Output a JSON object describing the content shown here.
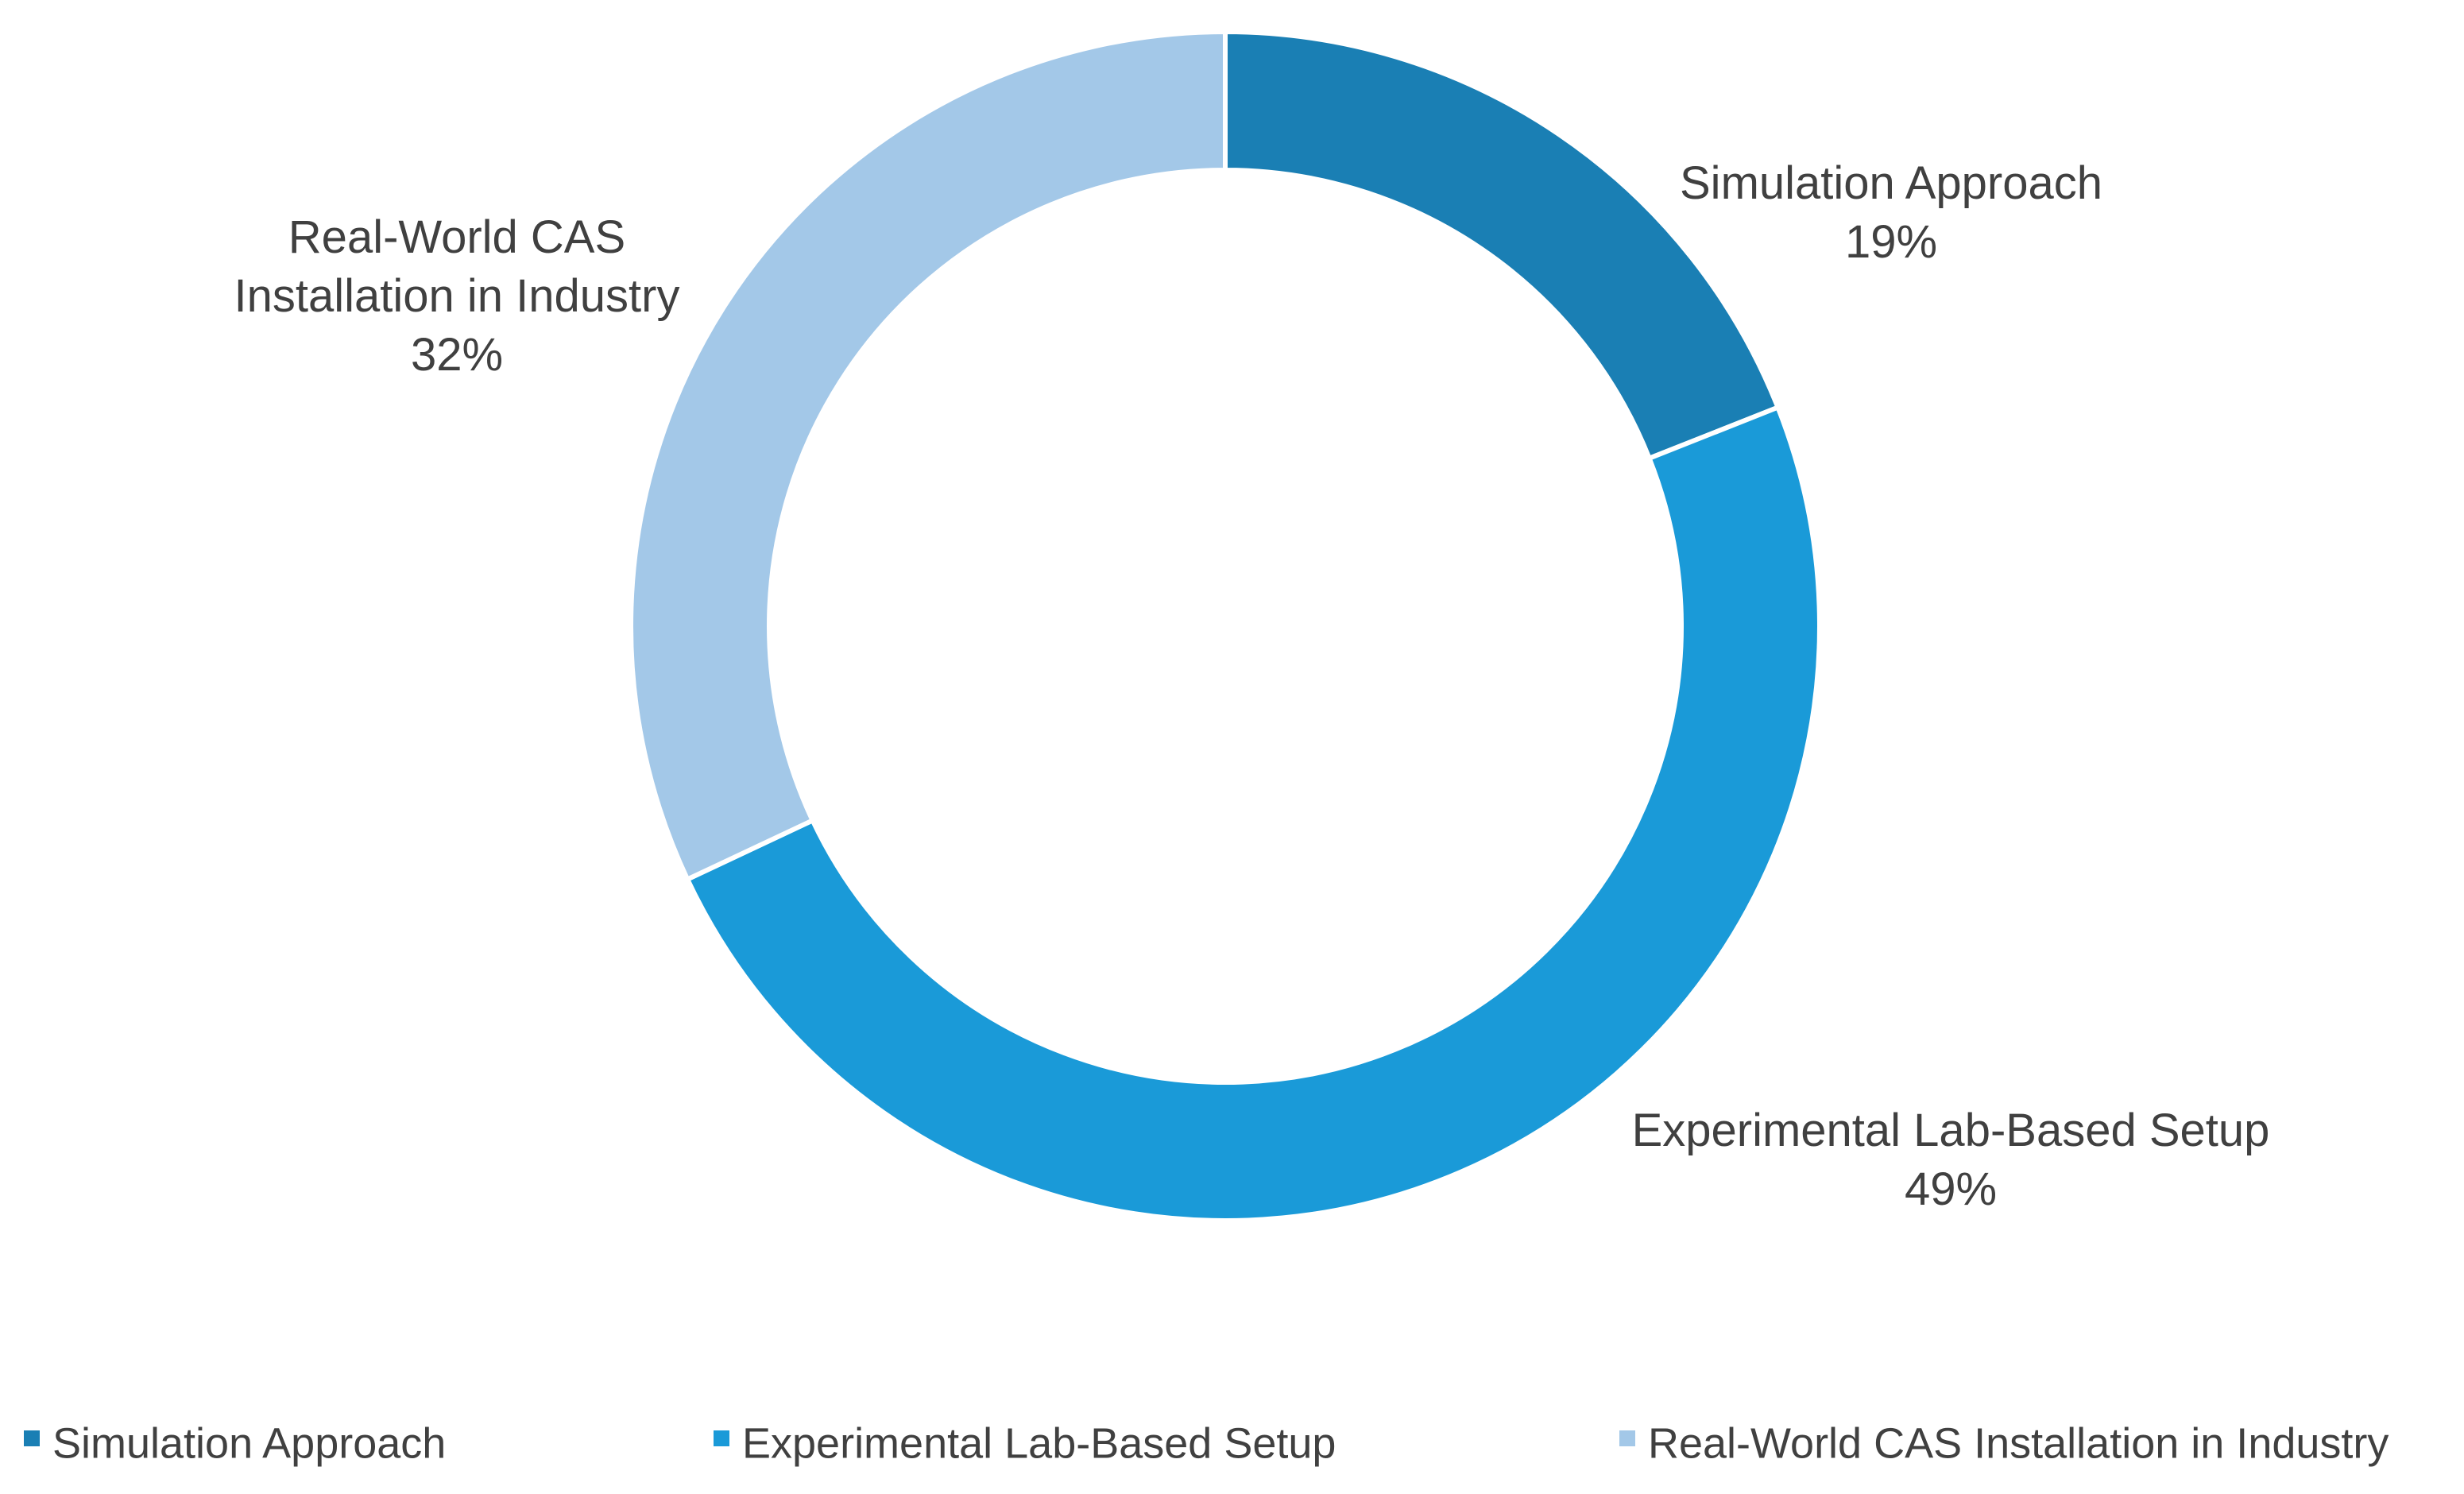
{
  "chart_data": {
    "type": "pie",
    "variant": "donut",
    "title": "",
    "start_angle_deg": 0,
    "direction": "clockwise",
    "slices": [
      {
        "name": "Simulation Approach",
        "value": 19,
        "label": "19%",
        "color": "#1a7fb4",
        "label_lines": [
          "Simulation Approach"
        ]
      },
      {
        "name": "Experimental Lab-Based Setup",
        "value": 49,
        "label": "49%",
        "color": "#1a9ad8",
        "label_lines": [
          "Experimental Lab-Based Setup"
        ]
      },
      {
        "name": "Real-World CAS Installation in Industry",
        "value": 32,
        "label": "32%",
        "color": "#a3c8e8",
        "label_lines": [
          "Real-World CAS",
          "Installation in Industry"
        ]
      }
    ],
    "legend": {
      "position": "bottom",
      "entries": [
        "Simulation Approach",
        "Experimental Lab-Based Setup",
        "Real-World CAS Installation in Industry"
      ]
    }
  }
}
